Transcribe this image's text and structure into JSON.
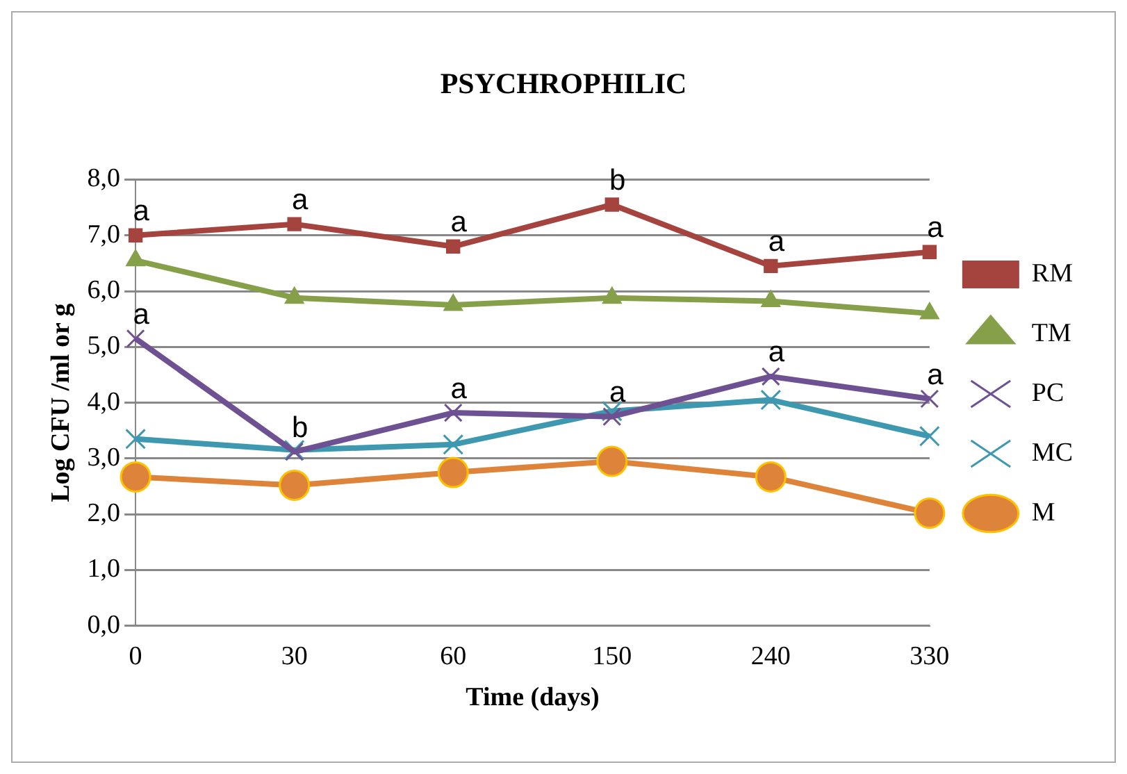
{
  "chart_data": {
    "type": "line",
    "title": "PSYCHROPHILIC",
    "xlabel": "Time (days)",
    "ylabel": "Log CFU /ml or g",
    "categories": [
      "0",
      "30",
      "60",
      "150",
      "240",
      "330"
    ],
    "series": [
      {
        "name": "RM",
        "color": "#a5433f",
        "marker": "square",
        "values": [
          7.0,
          7.2,
          6.8,
          7.55,
          6.45,
          6.7
        ]
      },
      {
        "name": "TM",
        "color": "#86a04a",
        "marker": "triangle",
        "values": [
          6.55,
          5.88,
          5.75,
          5.88,
          5.82,
          5.6
        ]
      },
      {
        "name": "PC",
        "color": "#6e5193",
        "marker": "cross",
        "values": [
          5.15,
          3.12,
          3.82,
          3.75,
          4.47,
          4.07
        ]
      },
      {
        "name": "MC",
        "color": "#3d98b0",
        "marker": "cross",
        "values": [
          3.35,
          3.15,
          3.25,
          3.85,
          4.05,
          3.4
        ]
      },
      {
        "name": "M",
        "color": "#dd843a",
        "marker": "circle",
        "values": [
          2.67,
          2.52,
          2.75,
          2.95,
          2.67,
          2.02
        ]
      }
    ],
    "ylim": [
      0,
      8
    ],
    "yticks": [
      {
        "value": 0,
        "label": "0,0"
      },
      {
        "value": 1,
        "label": "1,0"
      },
      {
        "value": 2,
        "label": "2,0"
      },
      {
        "value": 3,
        "label": "3,0"
      },
      {
        "value": 4,
        "label": "4,0"
      },
      {
        "value": 5,
        "label": "5,0"
      },
      {
        "value": 6,
        "label": "6,0"
      },
      {
        "value": 7,
        "label": "7,0"
      },
      {
        "value": 8,
        "label": "8,0"
      }
    ],
    "grid": "y",
    "legend": "right",
    "line_style": "solid",
    "annotations": [
      {
        "text": "a",
        "x": "0",
        "y": 7.0
      },
      {
        "text": "a",
        "x": "30",
        "y": 7.2
      },
      {
        "text": "a",
        "x": "60",
        "y": 6.8
      },
      {
        "text": "b",
        "x": "150",
        "y": 7.55
      },
      {
        "text": "a",
        "x": "240",
        "y": 6.45
      },
      {
        "text": "a",
        "x": "330",
        "y": 6.7
      },
      {
        "text": "a",
        "x": "0",
        "y": 5.15
      },
      {
        "text": "b",
        "x": "30",
        "y": 3.12
      },
      {
        "text": "a",
        "x": "60",
        "y": 3.82
      },
      {
        "text": "a",
        "x": "150",
        "y": 3.75
      },
      {
        "text": "a",
        "x": "240",
        "y": 4.47
      },
      {
        "text": "a",
        "x": "330",
        "y": 4.07
      }
    ]
  }
}
